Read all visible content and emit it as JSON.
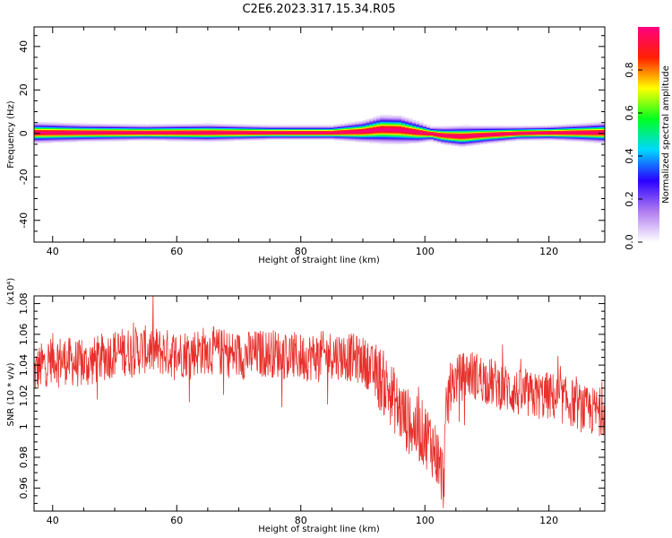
{
  "figure": {
    "title": "C2E6.2023.317.15.34.R05"
  },
  "chart_data": [
    {
      "type": "heatmap",
      "xlabel": "Height of straight line (km)",
      "ylabel": "Frequency (Hz)",
      "xlim": [
        37,
        129
      ],
      "ylim": [
        -50,
        49
      ],
      "x_ticks": [
        40,
        60,
        80,
        100,
        120
      ],
      "y_ticks": [
        -40,
        -20,
        0,
        20,
        40
      ],
      "colorbar": {
        "label": "Normalized spectral amplitude",
        "range": [
          0.0,
          1.0
        ],
        "ticks": [
          0.0,
          0.2,
          0.4,
          0.6,
          0.8
        ],
        "colormap": [
          "#ffffff",
          "#b07cf0",
          "#2a00ff",
          "#00d8ff",
          "#00ff20",
          "#ffff00",
          "#ff2000",
          "#ff0080"
        ]
      },
      "ridge": {
        "x": [
          37,
          45,
          55,
          65,
          75,
          85,
          90,
          93,
          96,
          99,
          101,
          103,
          106,
          110,
          115,
          120,
          125,
          129
        ],
        "center_hz": [
          0.5,
          0.5,
          0.5,
          0.5,
          0.5,
          0.5,
          1.0,
          2.0,
          1.8,
          0.6,
          0.0,
          -0.8,
          -1.2,
          -0.5,
          0.2,
          0.4,
          0.5,
          0.5
        ],
        "halfwidth_hz": [
          3.0,
          2.5,
          2.2,
          2.5,
          2.0,
          2.0,
          3.0,
          4.0,
          4.0,
          3.0,
          2.0,
          2.5,
          3.0,
          2.5,
          2.0,
          2.0,
          2.5,
          3.0
        ]
      }
    },
    {
      "type": "line",
      "xlabel": "Height of straight line (km)",
      "ylabel": "SNR (10 * v/v)",
      "y_scale_label": "(x10⁴)",
      "xlim": [
        37,
        129
      ],
      "ylim": [
        0.945,
        1.085
      ],
      "x_ticks": [
        40,
        60,
        80,
        100,
        120
      ],
      "y_ticks": [
        0.96,
        0.98,
        1.0,
        1.02,
        1.04,
        1.06,
        1.08
      ],
      "series": [
        {
          "color": "#e8302c",
          "x": [
            37,
            40,
            45,
            50,
            55,
            60,
            65,
            70,
            75,
            80,
            85,
            88,
            90,
            92,
            94,
            96,
            98,
            100,
            101,
            102,
            103,
            103.5,
            104,
            105,
            107,
            110,
            113,
            116,
            120,
            124,
            126,
            129
          ],
          "y": [
            1.035,
            1.045,
            1.04,
            1.048,
            1.05,
            1.047,
            1.05,
            1.046,
            1.048,
            1.045,
            1.047,
            1.045,
            1.043,
            1.035,
            1.025,
            1.01,
            1.0,
            0.995,
            0.99,
            0.98,
            0.965,
            1.01,
            1.025,
            1.03,
            1.035,
            1.03,
            1.025,
            1.02,
            1.02,
            1.015,
            1.01,
            1.01
          ],
          "noise_amplitude": 0.016
        }
      ]
    }
  ]
}
